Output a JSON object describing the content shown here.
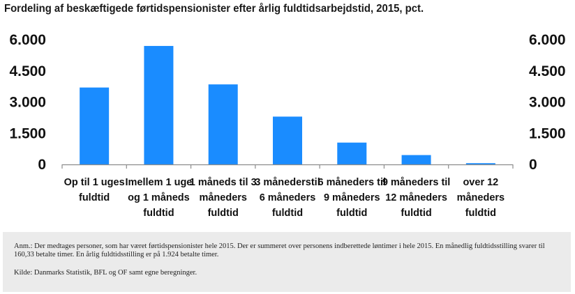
{
  "chart_data": {
    "type": "bar",
    "title": "Fordeling af beskæftigede førtidspensionister efter årlig fuldtidsarbejdstid, 2015, pct.",
    "categories": [
      [
        "Op til 1 uges",
        "fuldtid"
      ],
      [
        "Imellem 1 uge",
        "og 1 måneds",
        "fuldtid"
      ],
      [
        "1 måneds til 3",
        "måneders",
        "fuldtid"
      ],
      [
        "3 månederstil",
        "6 måneders",
        "fuldtid"
      ],
      [
        "6 måneders til",
        "9 måneders",
        "fuldtid"
      ],
      [
        "9 måneders til",
        "12 måneders",
        "fuldtid"
      ],
      [
        "over 12",
        "måneders",
        "fuldtid"
      ]
    ],
    "values": [
      3700,
      5700,
      3850,
      2300,
      1050,
      450,
      60
    ],
    "ylim": [
      0,
      6000
    ],
    "yticks": [
      0,
      1500,
      3000,
      4500,
      6000
    ],
    "ytick_labels": [
      "0",
      "1.500",
      "3.000",
      "4.500",
      "6.000"
    ],
    "secondary_axis": true,
    "grid": false,
    "bar_color": "#1a8cff"
  },
  "notes": {
    "note": "Anm.: Der medtages personer, som har været førtidspensionister hele 2015. Der er summeret over personens indberettede løntimer i hele 2015. En månedlig fuldtidsstilling svarer til 160,33 betalte timer. En årlig fuldtidsstilling er på 1.924 betalte timer.",
    "source": "Kilde: Danmarks Statistik, BFL og OF samt egne beregninger."
  }
}
